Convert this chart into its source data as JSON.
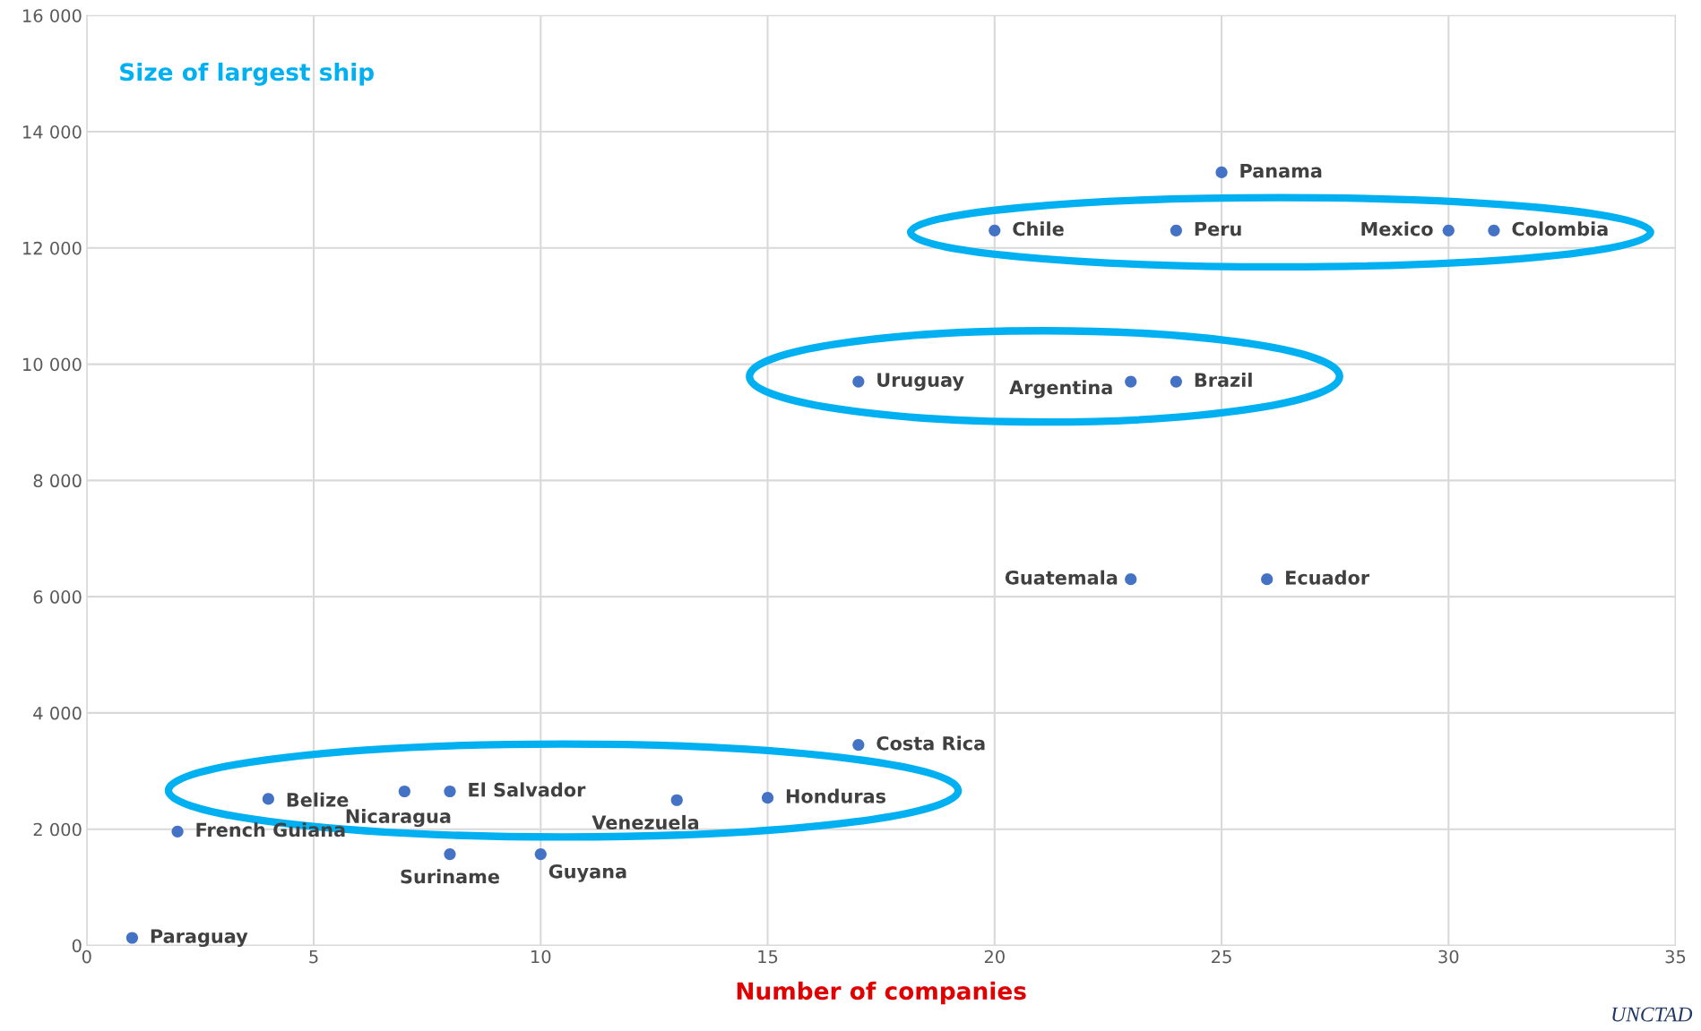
{
  "chart_data": {
    "type": "scatter",
    "title": "Size of largest ship",
    "xlabel": "Number of companies",
    "x": [
      1,
      2,
      4,
      7,
      8,
      8,
      10,
      13,
      15,
      17,
      17,
      23,
      24,
      23,
      26,
      25,
      20,
      24,
      30,
      31
    ],
    "series": [
      {
        "color": "#4472c4",
        "values": [
          130,
          1960,
          2520,
          2650,
          2650,
          1570,
          1570,
          2500,
          2540,
          3450,
          9700,
          9700,
          9700,
          6300,
          6300,
          13300,
          12300,
          12300,
          12300,
          12300
        ]
      }
    ],
    "marker": "circle",
    "grid": true,
    "xlim": [
      0,
      35
    ],
    "xticks": [
      0,
      5,
      10,
      15,
      20,
      25,
      30,
      35
    ],
    "ylim": [
      0,
      16000
    ],
    "yticks": [
      0,
      {
        "value": 2000,
        "label": "2 000"
      },
      {
        "value": 4000,
        "label": "4 000"
      },
      {
        "value": 6000,
        "label": "6 000"
      },
      {
        "value": 8000,
        "label": "8 000"
      },
      {
        "value": 10000,
        "label": "10 000"
      },
      {
        "value": 12000,
        "label": "12 000"
      },
      {
        "value": 14000,
        "label": "14 000"
      },
      {
        "value": 16000,
        "label": "16 000"
      }
    ],
    "annotations": [
      {
        "text": "Paraguay",
        "x": 1,
        "y": 130
      },
      {
        "text": "French Guiana",
        "x": 2,
        "y": 1960
      },
      {
        "text": "Belize",
        "x": 4,
        "y": 2520
      },
      {
        "text": "Nicaragua",
        "x": 7,
        "y": 2650
      },
      {
        "text": "El Salvador",
        "x": 8,
        "y": 2650
      },
      {
        "text": "Suriname",
        "x": 8,
        "y": 1570
      },
      {
        "text": "Guyana",
        "x": 10,
        "y": 1570
      },
      {
        "text": "Venezuela",
        "x": 13,
        "y": 2500
      },
      {
        "text": "Honduras",
        "x": 15,
        "y": 2540
      },
      {
        "text": "Costa Rica",
        "x": 17,
        "y": 3450
      },
      {
        "text": "Uruguay",
        "x": 17,
        "y": 9700
      },
      {
        "text": "Argentina",
        "x": 23,
        "y": 9700
      },
      {
        "text": "Brazil",
        "x": 24,
        "y": 9700
      },
      {
        "text": "Guatemala",
        "x": 23,
        "y": 6300
      },
      {
        "text": "Ecuador",
        "x": 26,
        "y": 6300
      },
      {
        "text": "Panama",
        "x": 25,
        "y": 13300
      },
      {
        "text": "Chile",
        "x": 20,
        "y": 12300
      },
      {
        "text": "Peru",
        "x": 24,
        "y": 12300
      },
      {
        "text": "Mexico",
        "x": 30,
        "y": 12300
      },
      {
        "text": "Colombia",
        "x": 31,
        "y": 12300
      },
      "UNCTAD"
    ]
  }
}
